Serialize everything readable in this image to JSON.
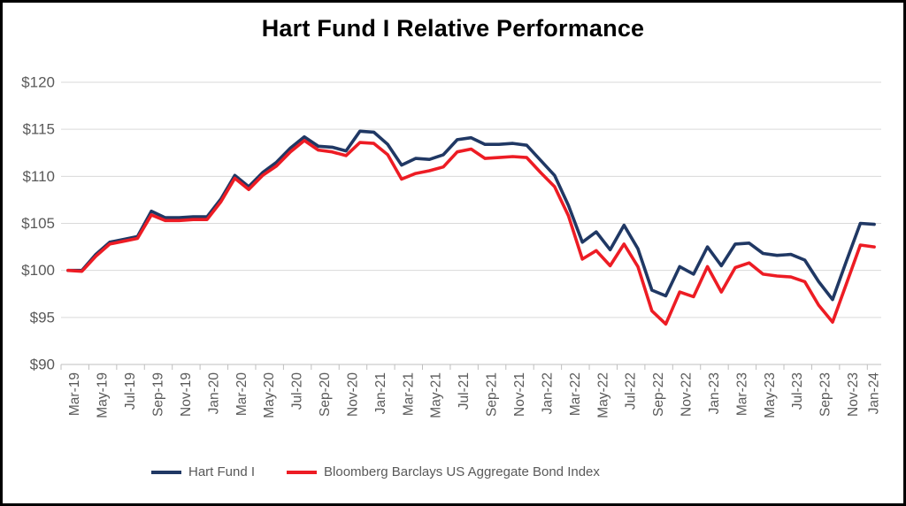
{
  "title": "Hart Fund I Relative Performance",
  "chart_data": {
    "type": "line",
    "title": "Hart Fund I Relative Performance",
    "x": [
      "Mar-19",
      "Apr-19",
      "May-19",
      "Jun-19",
      "Jul-19",
      "Aug-19",
      "Sep-19",
      "Oct-19",
      "Nov-19",
      "Dec-19",
      "Jan-20",
      "Feb-20",
      "Mar-20",
      "Apr-20",
      "May-20",
      "Jun-20",
      "Jul-20",
      "Aug-20",
      "Sep-20",
      "Oct-20",
      "Nov-20",
      "Dec-20",
      "Jan-21",
      "Feb-21",
      "Mar-21",
      "Apr-21",
      "May-21",
      "Jun-21",
      "Jul-21",
      "Aug-21",
      "Sep-21",
      "Oct-21",
      "Nov-21",
      "Dec-21",
      "Jan-22",
      "Feb-22",
      "Mar-22",
      "Apr-22",
      "May-22",
      "Jun-22",
      "Jul-22",
      "Aug-22",
      "Sep-22",
      "Oct-22",
      "Nov-22",
      "Dec-22",
      "Jan-23",
      "Feb-23",
      "Mar-23",
      "Apr-23",
      "May-23",
      "Jun-23",
      "Jul-23",
      "Aug-23",
      "Sep-23",
      "Oct-23",
      "Nov-23",
      "Dec-23",
      "Jan-24"
    ],
    "x_tick_labels": [
      "Mar-19",
      "May-19",
      "Jul-19",
      "Sep-19",
      "Nov-19",
      "Jan-20",
      "Mar-20",
      "May-20",
      "Jul-20",
      "Sep-20",
      "Nov-20",
      "Jan-21",
      "Mar-21",
      "May-21",
      "Jul-21",
      "Sep-21",
      "Nov-21",
      "Jan-22",
      "Mar-22",
      "May-22",
      "Jul-22",
      "Sep-22",
      "Nov-22",
      "Jan-23",
      "Mar-23",
      "May-23",
      "Jul-23",
      "Sep-23",
      "Nov-23",
      "Jan-24"
    ],
    "series": [
      {
        "name": "Hart Fund I",
        "color": "#203864",
        "values": [
          100.0,
          100.0,
          101.7,
          103.0,
          103.3,
          103.6,
          106.3,
          105.6,
          105.6,
          105.7,
          105.7,
          107.6,
          110.1,
          108.9,
          110.4,
          111.5,
          113.0,
          114.2,
          113.2,
          113.1,
          112.7,
          114.8,
          114.7,
          113.4,
          111.2,
          111.9,
          111.8,
          112.3,
          113.9,
          114.1,
          113.4,
          113.4,
          113.5,
          113.3,
          111.7,
          110.1,
          106.9,
          103.0,
          104.1,
          102.2,
          104.8,
          102.3,
          97.9,
          97.3,
          100.4,
          99.6,
          102.5,
          100.5,
          102.8,
          102.9,
          101.8,
          101.6,
          101.7,
          101.1,
          98.8,
          96.9,
          101.0,
          105.0,
          104.9
        ]
      },
      {
        "name": "Bloomberg Barclays US Aggregate Bond Index",
        "color": "#ED1C24",
        "values": [
          100.0,
          99.9,
          101.5,
          102.8,
          103.1,
          103.4,
          105.9,
          105.3,
          105.3,
          105.4,
          105.4,
          107.3,
          109.8,
          108.6,
          110.1,
          111.1,
          112.6,
          113.8,
          112.8,
          112.6,
          112.2,
          113.6,
          113.5,
          112.3,
          109.7,
          110.3,
          110.6,
          111.0,
          112.6,
          112.9,
          111.9,
          112.0,
          112.1,
          112.0,
          110.4,
          108.9,
          105.8,
          101.2,
          102.1,
          100.5,
          102.8,
          100.4,
          95.7,
          94.3,
          97.7,
          97.2,
          100.4,
          97.7,
          100.3,
          100.8,
          99.6,
          99.4,
          99.3,
          98.8,
          96.3,
          94.5,
          98.6,
          102.7,
          102.5
        ]
      }
    ],
    "ylim": [
      90,
      120
    ],
    "ytick_step": 5,
    "ytick_prefix": "$",
    "ytick_labels": [
      "$90",
      "$95",
      "$100",
      "$105",
      "$110",
      "$115",
      "$120"
    ],
    "grid": "horizontal",
    "legend_position": "bottom"
  },
  "colors": {
    "grid": "#D9D9D9",
    "axis": "#BFBFBF",
    "tick_label": "#595959",
    "legend_text": "#595959",
    "title_text": "#000000"
  },
  "legend": {
    "items": [
      {
        "label": "Hart Fund I",
        "color": "#203864"
      },
      {
        "label": "Bloomberg Barclays US Aggregate Bond Index",
        "color": "#ED1C24"
      }
    ]
  }
}
